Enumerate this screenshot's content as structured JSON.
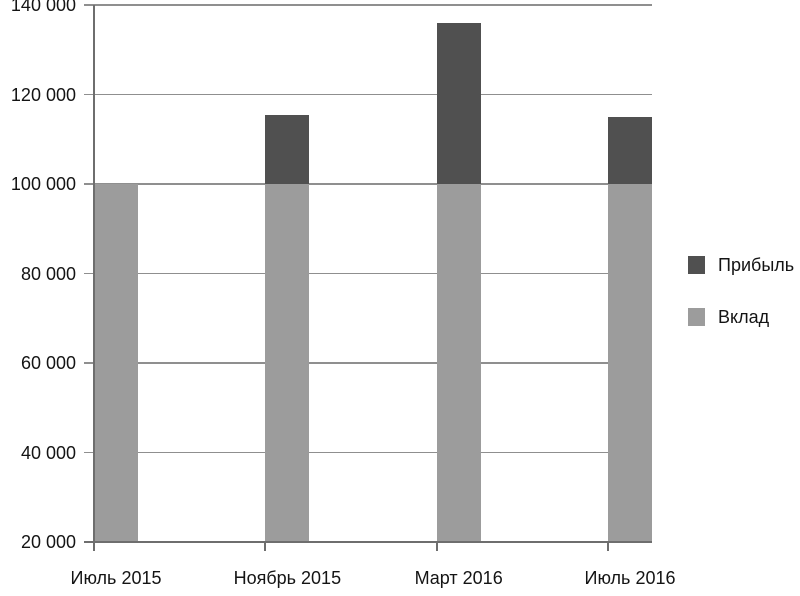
{
  "chart_data": {
    "type": "bar",
    "stacked": true,
    "title": "",
    "categories": [
      "Июль 2015",
      "Ноябрь 2015",
      "Март 2016",
      "Июль 2016"
    ],
    "series": [
      {
        "name": "Вклад",
        "color": "#9c9c9c",
        "values": [
          100000,
          100000,
          100000,
          100000
        ]
      },
      {
        "name": "Прибыль",
        "color": "#505050",
        "values": [
          0,
          15500,
          36000,
          15000
        ]
      }
    ],
    "stack_totals": [
      100000,
      115500,
      136000,
      115000
    ],
    "ylim": [
      20000,
      140000
    ],
    "yticks": [
      {
        "value": 20000,
        "label": "20 000"
      },
      {
        "value": 40000,
        "label": "40 000"
      },
      {
        "value": 60000,
        "label": "60 000"
      },
      {
        "value": 80000,
        "label": "80 000"
      },
      {
        "value": 100000,
        "label": "100 000"
      },
      {
        "value": 120000,
        "label": "120 000"
      },
      {
        "value": 140000,
        "label": "140 000"
      }
    ],
    "grid": true,
    "legend": {
      "position": "right",
      "items": [
        {
          "label": "Прибыль",
          "color": "#505050"
        },
        {
          "label": "Вклад",
          "color": "#9c9c9c"
        }
      ]
    },
    "colors": {
      "grid": "#8f8f8f",
      "axis": "#6e6e6e",
      "text": "#141414",
      "background": "#ffffff"
    }
  }
}
